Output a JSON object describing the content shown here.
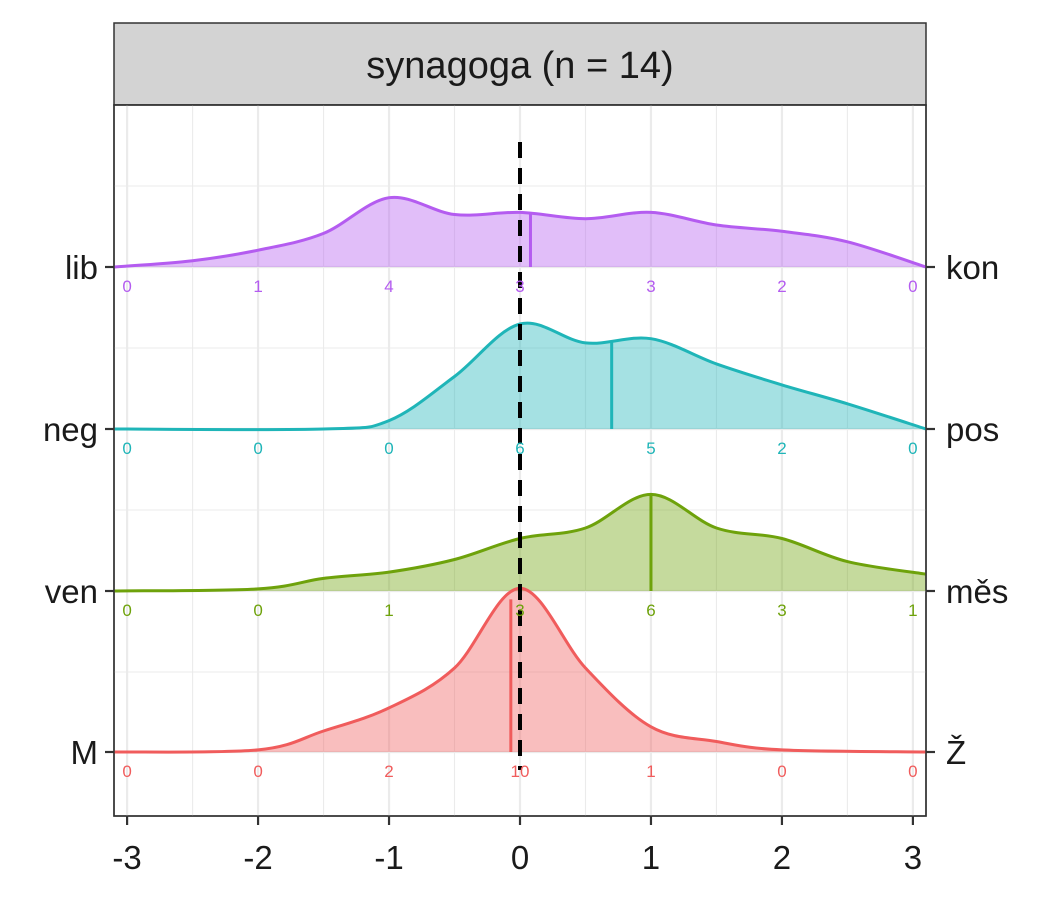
{
  "chart_data": {
    "type": "ridgeline",
    "title": "synagoga (n = 14)",
    "x_ticks": [
      -3,
      -2,
      -1,
      0,
      1,
      2,
      3
    ],
    "x_tick_labels": [
      "-3",
      "-2",
      "-1",
      "0",
      "1",
      "2",
      "3"
    ],
    "xlim": [
      -3.1,
      3.1
    ],
    "reference_line_x": 0,
    "grid": true,
    "categories_x": [
      -3,
      -2,
      -1,
      0,
      1,
      2,
      3
    ],
    "rows": [
      {
        "left_label": "lib",
        "right_label": "kon",
        "color": "#b45cf0",
        "mean": 0.08,
        "counts": [
          0,
          1,
          4,
          3,
          3,
          2,
          0
        ],
        "count_labels": [
          "0",
          "1",
          "4",
          "3",
          "3",
          "2",
          "0"
        ],
        "density": [
          [
            -3.1,
            0.0
          ],
          [
            -2.5,
            0.03
          ],
          [
            -2.0,
            0.08
          ],
          [
            -1.5,
            0.16
          ],
          [
            -1.0,
            0.33
          ],
          [
            -0.5,
            0.25
          ],
          [
            0.0,
            0.26
          ],
          [
            0.5,
            0.23
          ],
          [
            1.0,
            0.26
          ],
          [
            1.5,
            0.2
          ],
          [
            2.0,
            0.17
          ],
          [
            2.5,
            0.12
          ],
          [
            3.1,
            0.0
          ]
        ]
      },
      {
        "left_label": "neg",
        "right_label": "pos",
        "color": "#1fb5b8",
        "mean": 0.7,
        "counts": [
          0,
          0,
          0,
          6,
          5,
          2,
          0
        ],
        "count_labels": [
          "0",
          "0",
          "0",
          "6",
          "5",
          "2",
          "0"
        ],
        "density": [
          [
            -3.1,
            0.0
          ],
          [
            -1.5,
            0.0
          ],
          [
            -1.0,
            0.04
          ],
          [
            -0.5,
            0.25
          ],
          [
            0.0,
            0.5
          ],
          [
            0.5,
            0.41
          ],
          [
            1.0,
            0.43
          ],
          [
            1.5,
            0.31
          ],
          [
            2.0,
            0.21
          ],
          [
            2.5,
            0.12
          ],
          [
            3.1,
            0.0
          ]
        ]
      },
      {
        "left_label": "ven",
        "right_label": "měs",
        "color": "#6ea20b",
        "mean": 1.0,
        "counts": [
          0,
          0,
          1,
          3,
          6,
          3,
          1
        ],
        "count_labels": [
          "0",
          "0",
          "1",
          "3",
          "6",
          "3",
          "1"
        ],
        "density": [
          [
            -3.1,
            0.0
          ],
          [
            -2.0,
            0.01
          ],
          [
            -1.5,
            0.06
          ],
          [
            -1.0,
            0.09
          ],
          [
            -0.5,
            0.15
          ],
          [
            0.0,
            0.25
          ],
          [
            0.5,
            0.3
          ],
          [
            1.0,
            0.46
          ],
          [
            1.5,
            0.3
          ],
          [
            2.0,
            0.25
          ],
          [
            2.5,
            0.14
          ],
          [
            3.1,
            0.08
          ]
        ]
      },
      {
        "left_label": "M",
        "right_label": "Ž",
        "color": "#f05c5c",
        "mean": -0.07,
        "counts": [
          0,
          0,
          2,
          10,
          1,
          0,
          0
        ],
        "count_labels": [
          "0",
          "0",
          "2",
          "10",
          "1",
          "0",
          "0"
        ],
        "density": [
          [
            -3.1,
            0.0
          ],
          [
            -2.0,
            0.01
          ],
          [
            -1.5,
            0.1
          ],
          [
            -1.0,
            0.21
          ],
          [
            -0.5,
            0.4
          ],
          [
            0.0,
            0.78
          ],
          [
            0.5,
            0.4
          ],
          [
            1.0,
            0.12
          ],
          [
            1.5,
            0.05
          ],
          [
            2.0,
            0.01
          ],
          [
            3.1,
            0.0
          ]
        ]
      }
    ]
  }
}
